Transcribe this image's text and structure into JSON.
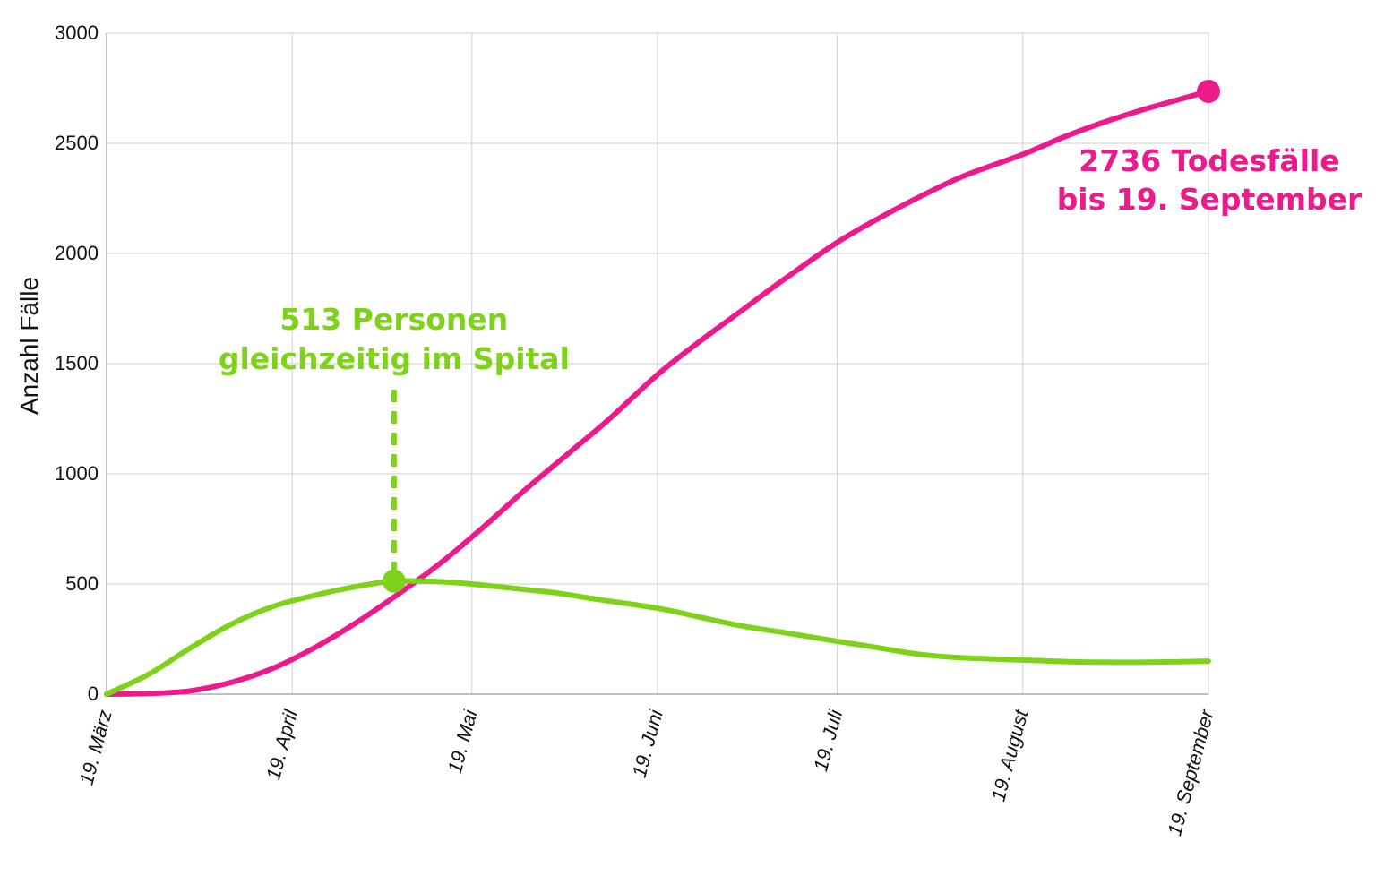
{
  "chart_data": {
    "type": "line",
    "ylabel": "Anzahl Fälle",
    "ylim": [
      0,
      3000
    ],
    "yticks": [
      "0",
      "500",
      "1000",
      "1500",
      "2000",
      "2500",
      "3000"
    ],
    "x_categories": [
      "19. März",
      "19. April",
      "19. Mai",
      "19. Juni",
      "19. Juli",
      "19. August",
      "19. September"
    ],
    "grid": true,
    "series": [
      {
        "key": "deaths",
        "color": "#ec1a8c",
        "x": [
          "2020-03-19",
          "2020-03-26",
          "2020-04-02",
          "2020-04-09",
          "2020-04-16",
          "2020-04-23",
          "2020-04-30",
          "2020-05-07",
          "2020-05-14",
          "2020-05-21",
          "2020-05-28",
          "2020-06-04",
          "2020-06-11",
          "2020-06-19",
          "2020-06-26",
          "2020-07-03",
          "2020-07-10",
          "2020-07-19",
          "2020-07-26",
          "2020-08-02",
          "2020-08-09",
          "2020-08-19",
          "2020-08-26",
          "2020-09-02",
          "2020-09-09",
          "2020-09-19"
        ],
        "y": [
          0,
          3,
          15,
          55,
          120,
          215,
          330,
          460,
          600,
          760,
          930,
          1090,
          1250,
          1450,
          1600,
          1740,
          1880,
          2050,
          2160,
          2260,
          2350,
          2450,
          2530,
          2600,
          2660,
          2736
        ]
      },
      {
        "key": "hospital",
        "color": "#7ed31a",
        "x": [
          "2020-03-19",
          "2020-03-26",
          "2020-04-02",
          "2020-04-09",
          "2020-04-16",
          "2020-04-23",
          "2020-04-30",
          "2020-05-06",
          "2020-05-10",
          "2020-05-14",
          "2020-05-19",
          "2020-05-26",
          "2020-06-02",
          "2020-06-09",
          "2020-06-19",
          "2020-06-26",
          "2020-07-03",
          "2020-07-10",
          "2020-07-19",
          "2020-07-26",
          "2020-08-02",
          "2020-08-09",
          "2020-08-19",
          "2020-08-26",
          "2020-09-02",
          "2020-09-09",
          "2020-09-19"
        ],
        "y": [
          0,
          90,
          210,
          320,
          400,
          450,
          490,
          513,
          513,
          510,
          500,
          480,
          460,
          430,
          390,
          350,
          310,
          280,
          240,
          210,
          180,
          165,
          155,
          148,
          145,
          145,
          150
        ]
      }
    ],
    "annotations": [
      {
        "key": "hospital_peak",
        "line1": "513 Personen",
        "line2": "gleichzeitig im Spital",
        "x": "2020-05-06",
        "y": 513,
        "color": "#7ed31a"
      },
      {
        "key": "deaths_end",
        "line1": "2736 Todesfälle",
        "line2": "bis 19. September",
        "x": "2020-09-19",
        "y": 2736,
        "color": "#ec1a8c"
      }
    ]
  }
}
